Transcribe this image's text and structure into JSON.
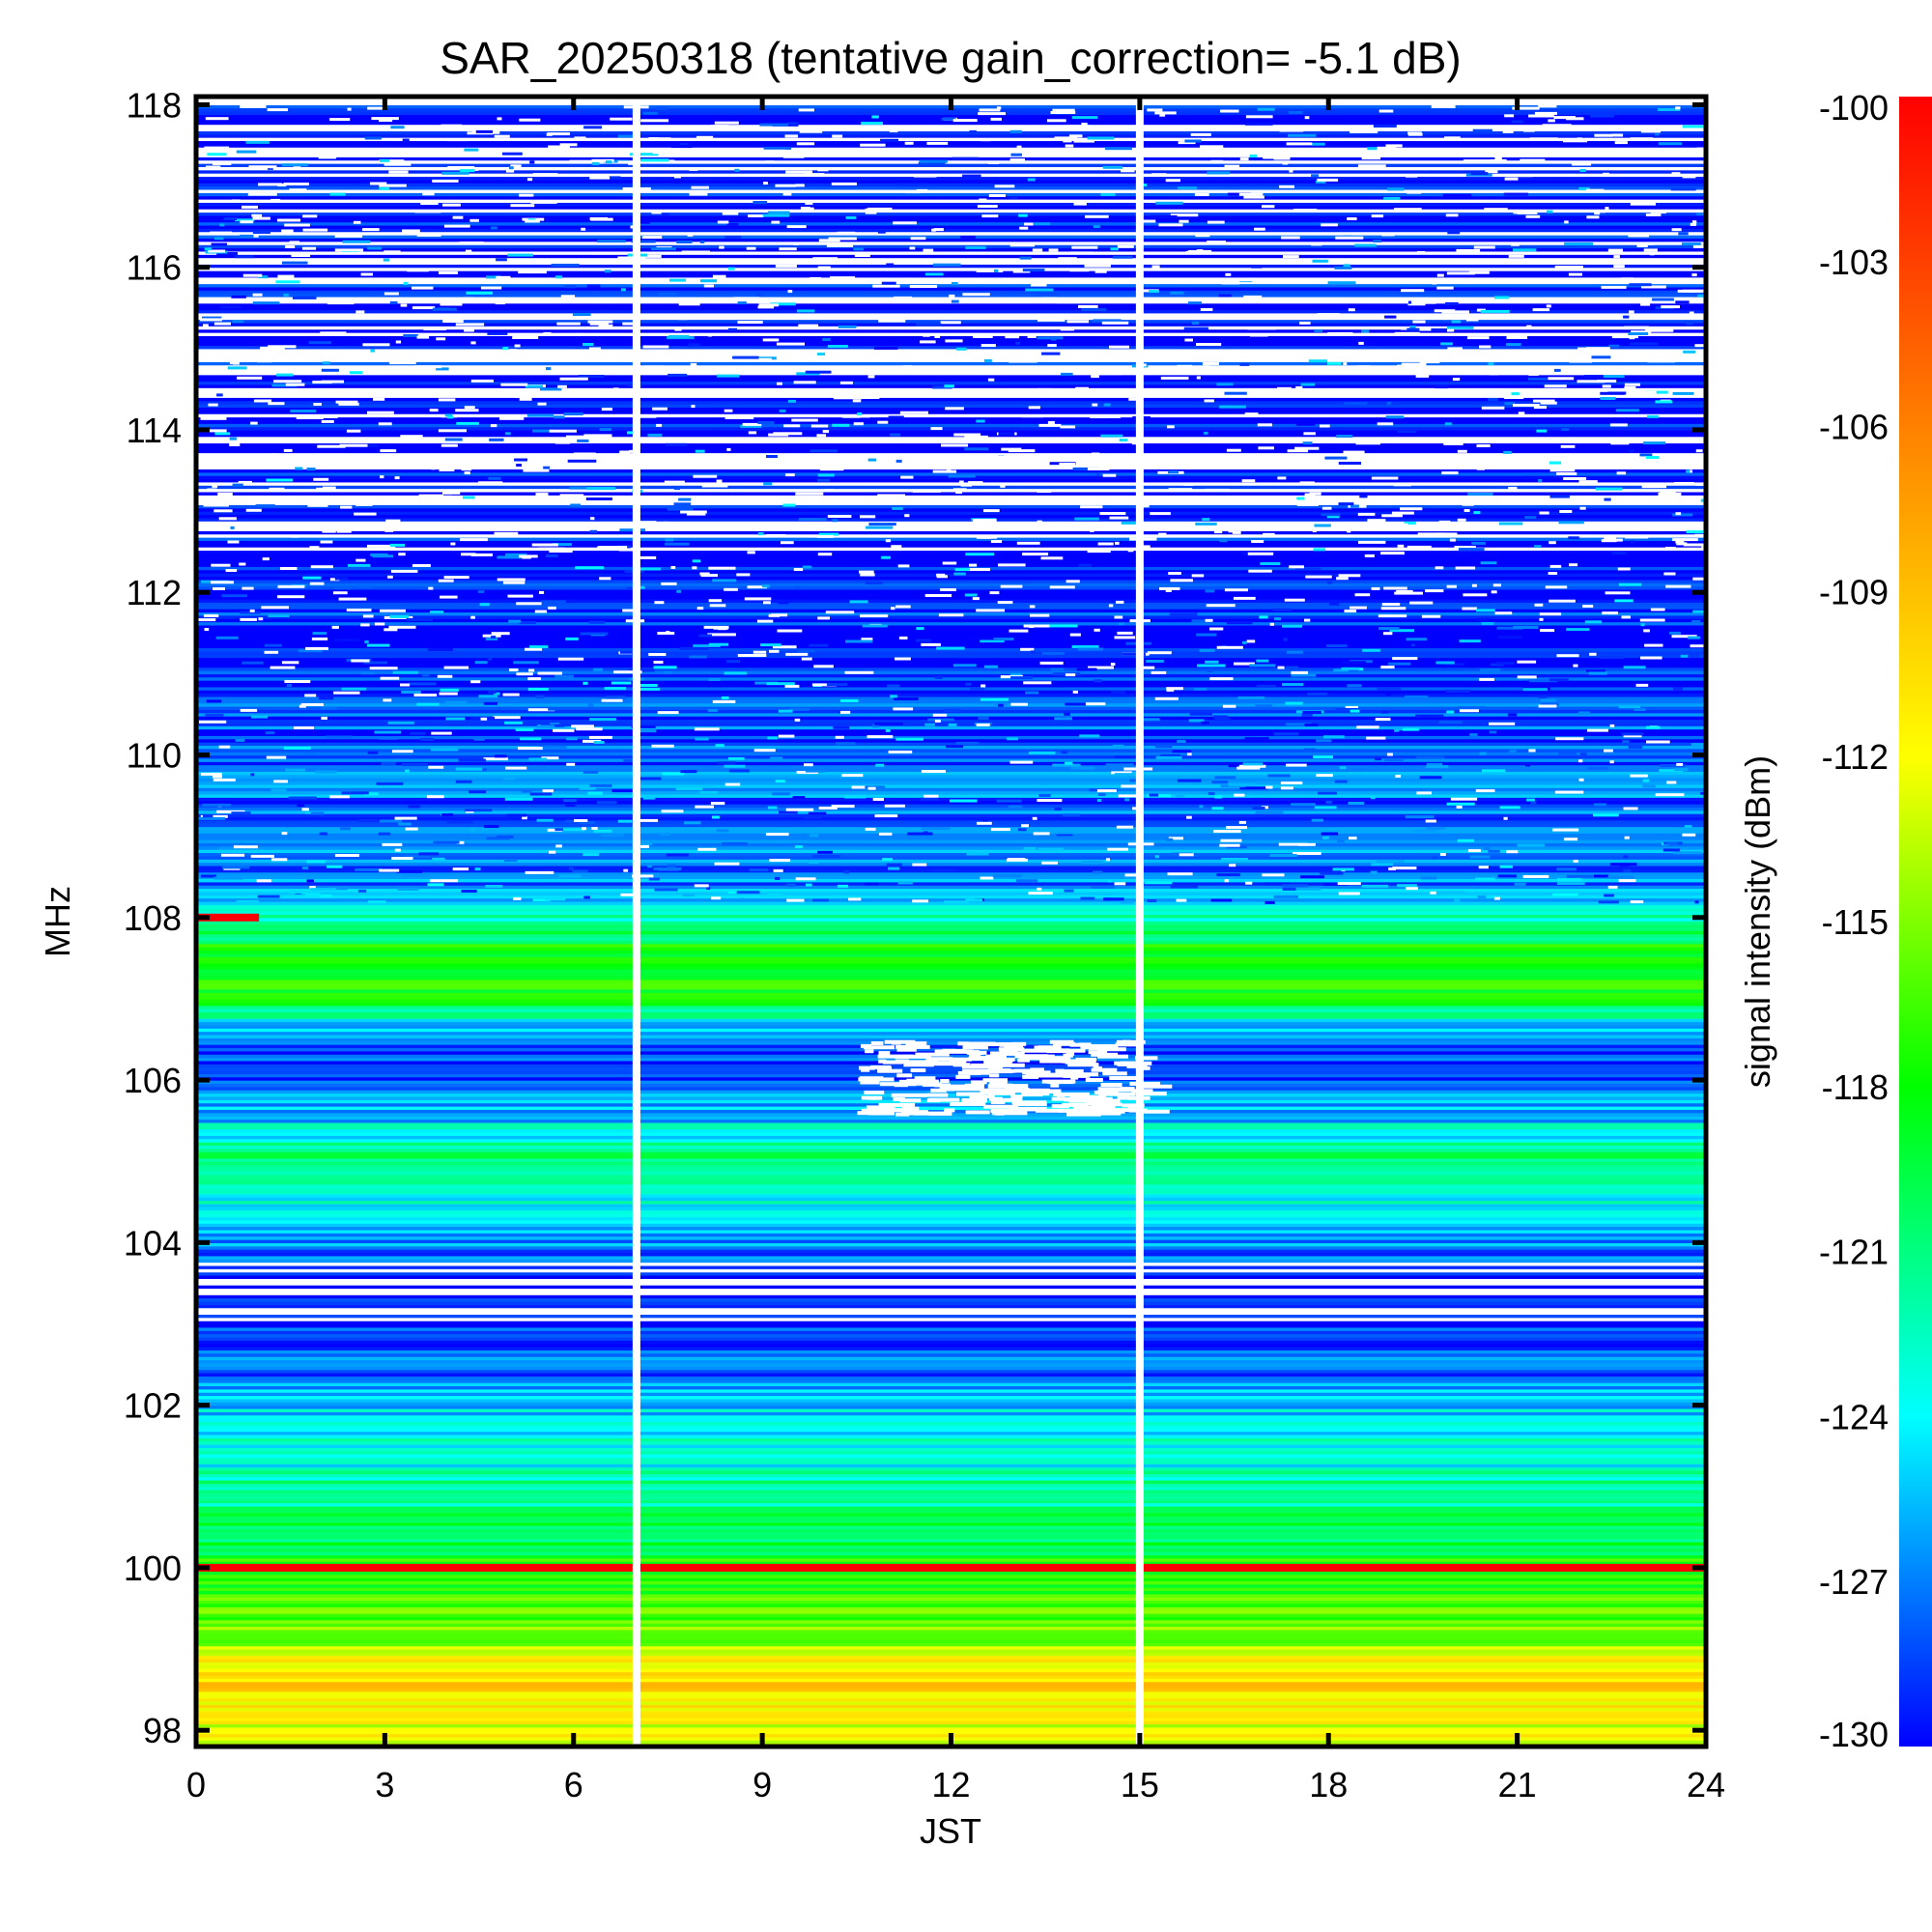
{
  "chart_data": {
    "type": "heatmap",
    "title": "SAR_20250318 (tentative gain_correction= -5.1 dB)",
    "xlabel": "JST",
    "ylabel": "MHz",
    "colorbar_label": "signal intensity (dBm)",
    "xlim": [
      0,
      24
    ],
    "ylim": [
      97.8,
      118.1
    ],
    "x_ticks": [
      "0",
      "3",
      "6",
      "9",
      "12",
      "15",
      "18",
      "21",
      "24"
    ],
    "x_tick_values": [
      0,
      3,
      6,
      9,
      12,
      15,
      18,
      21,
      24
    ],
    "y_ticks": [
      "98",
      "100",
      "102",
      "104",
      "106",
      "108",
      "110",
      "112",
      "114",
      "116",
      "118"
    ],
    "y_tick_values": [
      98,
      100,
      102,
      104,
      106,
      108,
      110,
      112,
      114,
      116,
      118
    ],
    "colorbar_ticks": [
      "-100",
      "-103",
      "-106",
      "-109",
      "-112",
      "-115",
      "-118",
      "-121",
      "-124",
      "-127",
      "-130"
    ],
    "colorbar_tick_values": [
      -100,
      -103,
      -106,
      -109,
      -112,
      -115,
      -118,
      -121,
      -124,
      -127,
      -130
    ],
    "color_range": [
      -130,
      -100
    ],
    "colormap": "rainbow",
    "colormap_stops": [
      "#0000ff",
      "#00ffff",
      "#00ff00",
      "#ffff00",
      "#ff8000",
      "#ff0000"
    ],
    "data_gaps_jst": [
      7.0,
      15.0
    ],
    "strong_bands_mhz": [
      {
        "freq": 100.0,
        "level_dbm": -100
      },
      {
        "freq": 108.0,
        "level_dbm": -100,
        "span_jst": [
          0,
          1
        ]
      }
    ],
    "band_profile": [
      {
        "freq": 98.0,
        "level_dbm": -113
      },
      {
        "freq": 98.6,
        "level_dbm": -110
      },
      {
        "freq": 99.2,
        "level_dbm": -116
      },
      {
        "freq": 99.8,
        "level_dbm": -117
      },
      {
        "freq": 100.5,
        "level_dbm": -120
      },
      {
        "freq": 101.0,
        "level_dbm": -122
      },
      {
        "freq": 101.5,
        "level_dbm": -124
      },
      {
        "freq": 102.0,
        "level_dbm": -125
      },
      {
        "freq": 102.5,
        "level_dbm": -128
      },
      {
        "freq": 103.0,
        "level_dbm": -129
      },
      {
        "freq": 103.5,
        "level_dbm": -130
      },
      {
        "freq": 104.0,
        "level_dbm": -127
      },
      {
        "freq": 104.5,
        "level_dbm": -123
      },
      {
        "freq": 105.0,
        "level_dbm": -121
      },
      {
        "freq": 105.5,
        "level_dbm": -125
      },
      {
        "freq": 106.0,
        "level_dbm": -129
      },
      {
        "freq": 106.5,
        "level_dbm": -128
      },
      {
        "freq": 107.0,
        "level_dbm": -118
      },
      {
        "freq": 107.5,
        "level_dbm": -117
      },
      {
        "freq": 108.5,
        "level_dbm": -128
      },
      {
        "freq": 109.0,
        "level_dbm": -127
      },
      {
        "freq": 110.0,
        "level_dbm": -128
      },
      {
        "freq": 111.0,
        "level_dbm": -129
      },
      {
        "freq": 112.0,
        "level_dbm": -129
      },
      {
        "freq": 113.0,
        "level_dbm": -130
      },
      {
        "freq": 114.0,
        "level_dbm": -130
      },
      {
        "freq": 116.0,
        "level_dbm": -130
      },
      {
        "freq": 118.0,
        "level_dbm": -130
      }
    ],
    "grid": false,
    "colorbar_position": "right"
  }
}
